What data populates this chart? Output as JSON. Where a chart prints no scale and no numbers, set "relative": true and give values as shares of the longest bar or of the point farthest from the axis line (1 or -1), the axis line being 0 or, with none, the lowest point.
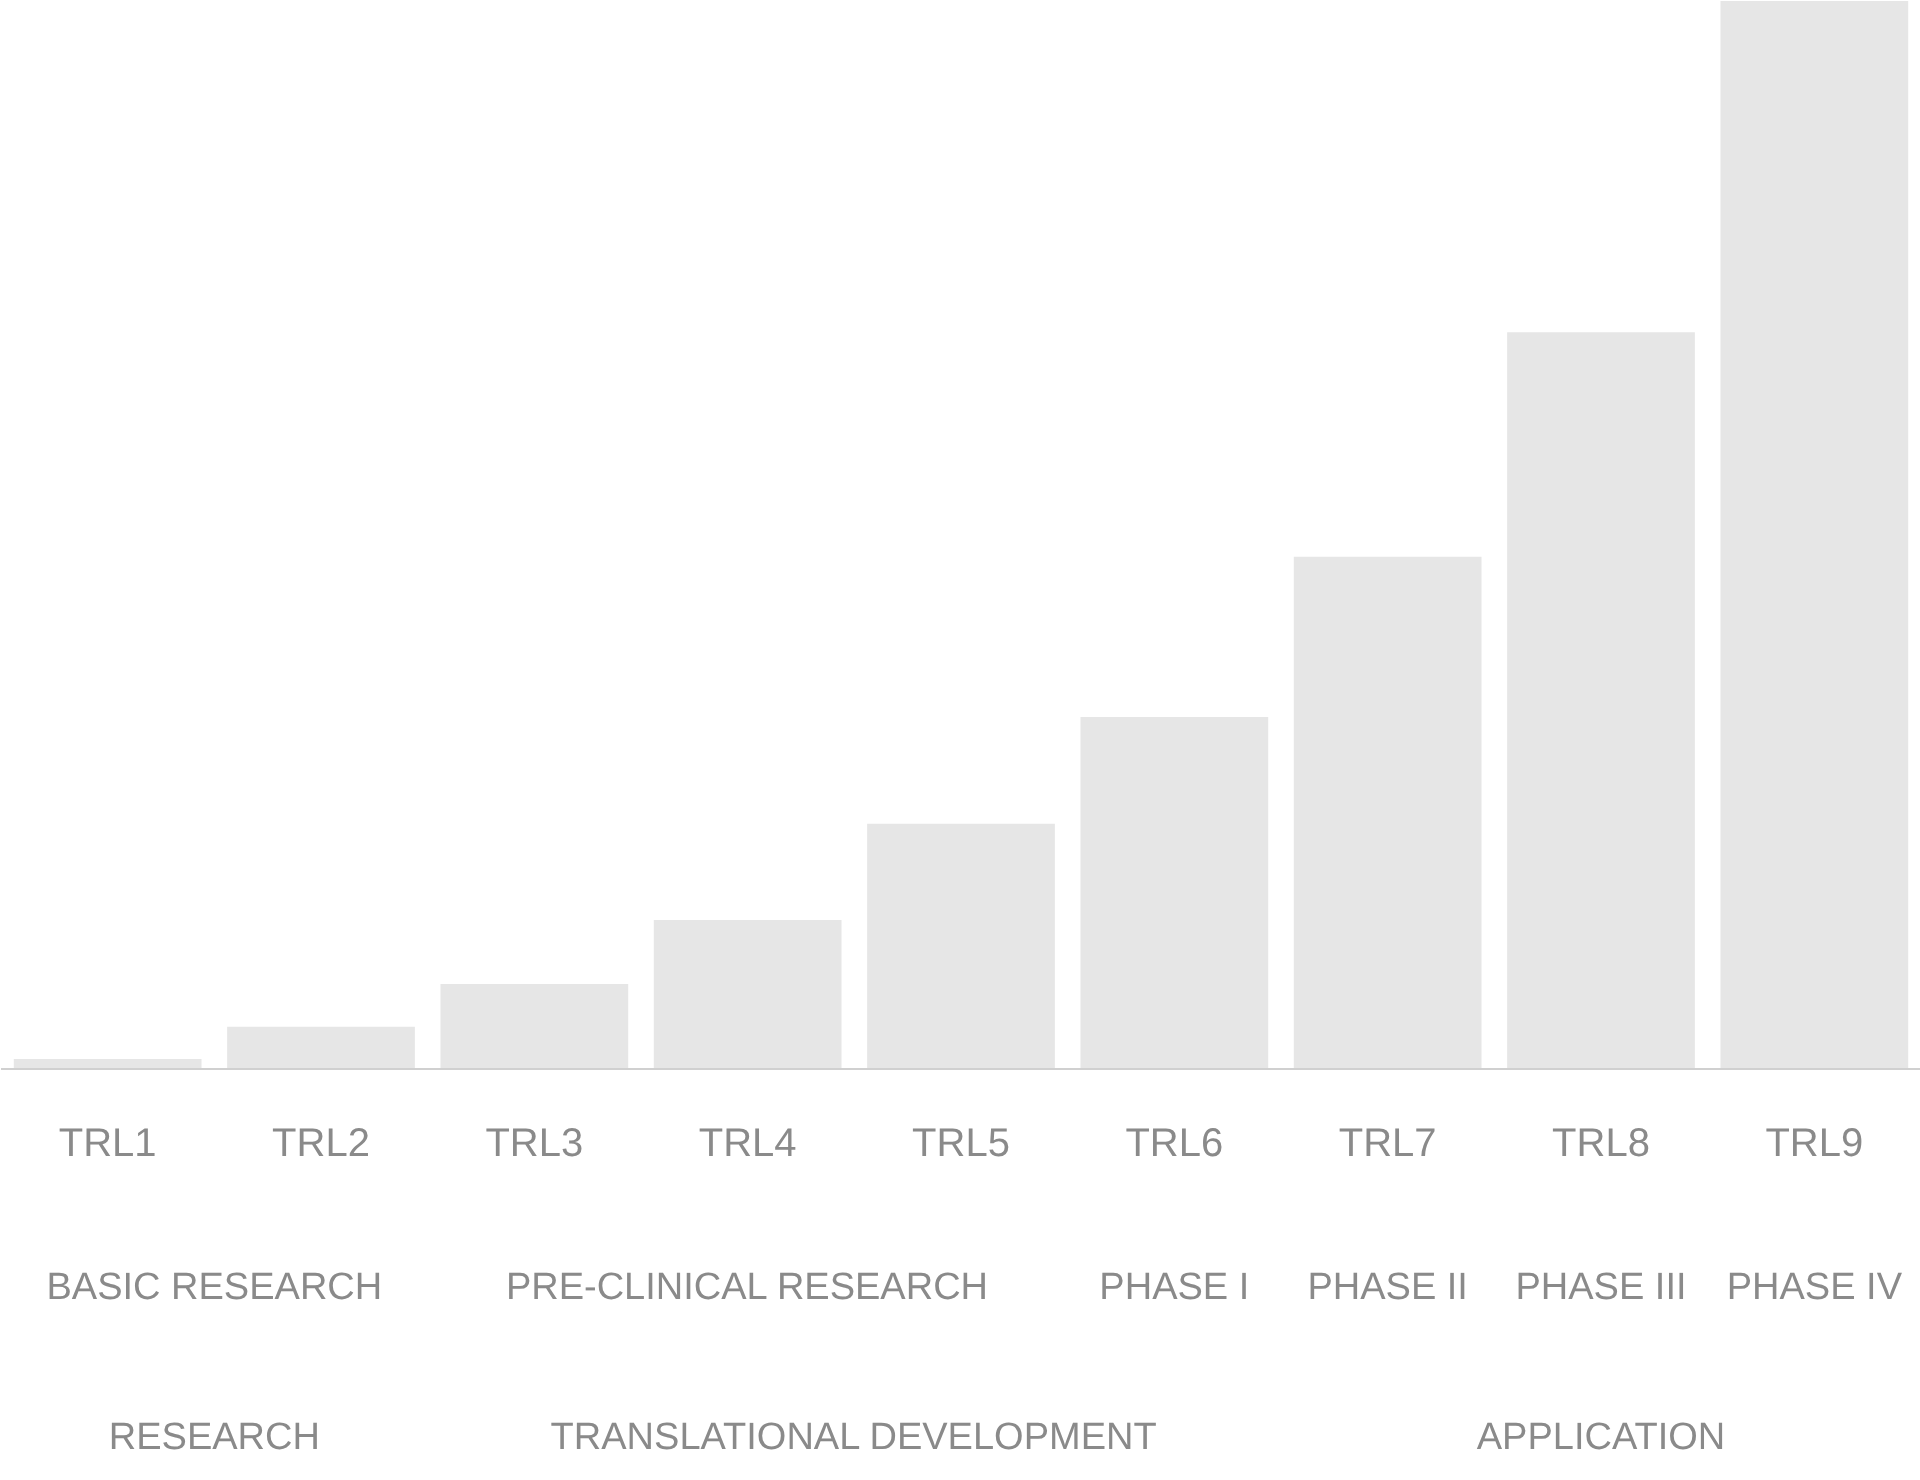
{
  "chart_data": {
    "type": "bar",
    "relative": true,
    "categories": [
      "TRL1",
      "TRL2",
      "TRL3",
      "TRL4",
      "TRL5",
      "TRL6",
      "TRL7",
      "TRL8",
      "TRL9"
    ],
    "values": [
      0.01,
      0.04,
      0.08,
      0.14,
      0.23,
      0.33,
      0.48,
      0.69,
      1.0
    ],
    "color": "#e6e6e6",
    "annotations": [
      "BASIC RESEARCH",
      "PRE-CLINICAL RESEARCH",
      "PHASE I",
      "PHASE II",
      "PHASE III",
      "PHASE IV",
      "RESEARCH",
      "TRANSLATIONAL DEVELOPMENT",
      "APPLICATION"
    ],
    "grid": false
  }
}
